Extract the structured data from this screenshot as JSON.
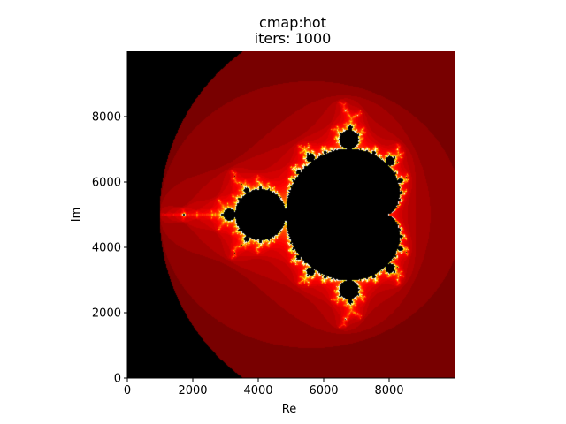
{
  "chart_data": {
    "type": "heatmap",
    "title_lines": [
      "cmap:hot",
      "iters: 1000"
    ],
    "xlabel": "Re",
    "ylabel": "Im",
    "colormap": "hot",
    "iterations": 1000,
    "xlim": [
      0,
      10000
    ],
    "ylim": [
      0,
      10000
    ],
    "x_ticks": [
      {
        "value": 0,
        "label": "0"
      },
      {
        "value": 2000,
        "label": "2000"
      },
      {
        "value": 4000,
        "label": "4000"
      },
      {
        "value": 6000,
        "label": "6000"
      },
      {
        "value": 8000,
        "label": "8000"
      }
    ],
    "y_ticks": [
      {
        "value": 0,
        "label": "0"
      },
      {
        "value": 2000,
        "label": "2000"
      },
      {
        "value": 4000,
        "label": "4000"
      },
      {
        "value": 6000,
        "label": "6000"
      },
      {
        "value": 8000,
        "label": "8000"
      }
    ],
    "fractal": "mandelbrot",
    "grid": false,
    "colors": {
      "set_interior": "#000000",
      "background_field": "#140000",
      "outer_field": "#000000",
      "edge_glow": "#ff2000",
      "edge_hot": "#ffff80"
    }
  }
}
